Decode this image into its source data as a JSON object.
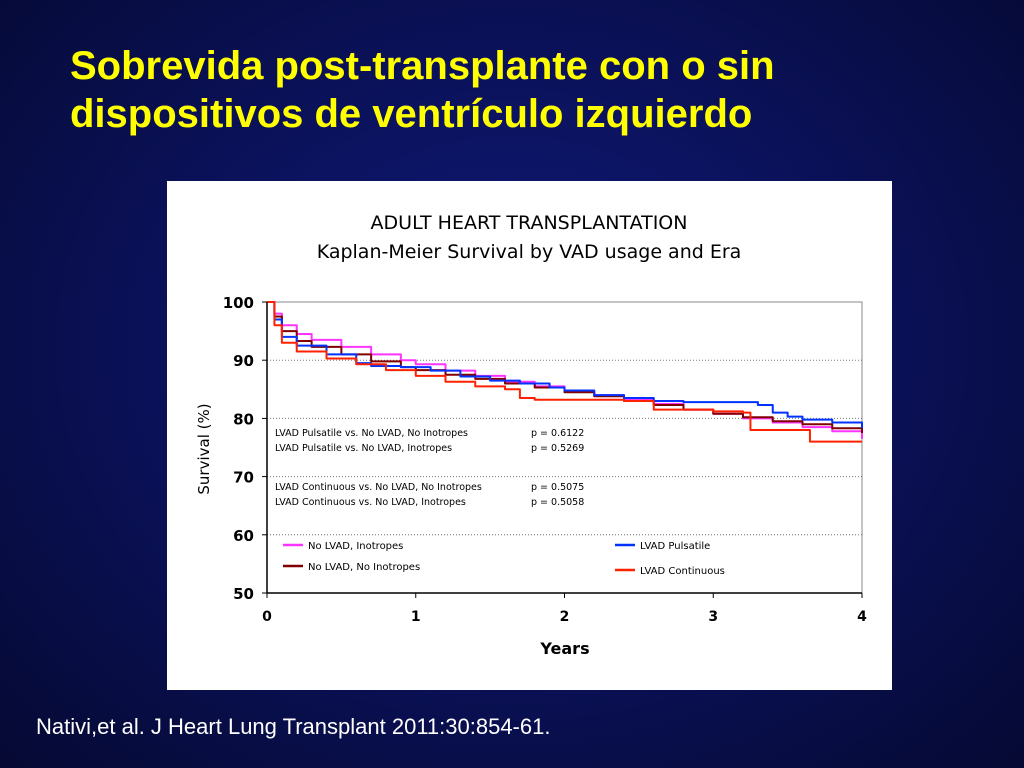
{
  "slide": {
    "title_line1": "Sobrevida post-transplante con o sin",
    "title_line2": "dispositivos de ventrículo izquierdo",
    "citation": "Nativi,et al. J Heart Lung Transplant 2011:30:854-61."
  },
  "chart_data": {
    "type": "line",
    "title": "ADULT HEART TRANSPLANTATION",
    "subtitle": "Kaplan-Meier Survival by VAD usage and Era",
    "xlabel": "Years",
    "ylabel": "Survival (%)",
    "xlim": [
      0,
      4
    ],
    "ylim": [
      50,
      100
    ],
    "x_ticks": [
      0,
      1,
      2,
      3,
      4
    ],
    "y_ticks": [
      50,
      60,
      70,
      80,
      90,
      100
    ],
    "grid": "horizontal dotted",
    "series": [
      {
        "name": "No LVAD, Inotropes",
        "color": "#ff33ff",
        "x": [
          0,
          0.05,
          0.1,
          0.2,
          0.3,
          0.5,
          0.7,
          0.9,
          1.0,
          1.2,
          1.4,
          1.6,
          1.8,
          2.0,
          2.2,
          2.4,
          2.6,
          2.8,
          3.0,
          3.2,
          3.4,
          3.6,
          3.8,
          4.0
        ],
        "y": [
          100,
          98,
          96,
          94.5,
          93.5,
          92.3,
          91,
          90,
          89.3,
          88.2,
          87.3,
          86.3,
          85.5,
          84.7,
          84,
          83.3,
          82.5,
          81.5,
          80.8,
          80,
          79.3,
          78.5,
          77.8,
          76.5
        ]
      },
      {
        "name": "No LVAD, No Inotropes",
        "color": "#800000",
        "x": [
          0,
          0.05,
          0.1,
          0.2,
          0.3,
          0.5,
          0.7,
          0.9,
          1.0,
          1.2,
          1.4,
          1.6,
          1.8,
          2.0,
          2.2,
          2.4,
          2.6,
          2.8,
          3.0,
          3.2,
          3.4,
          3.6,
          3.8,
          4.0
        ],
        "y": [
          100,
          97.5,
          95,
          93.3,
          92.3,
          91,
          89.8,
          88.8,
          88.3,
          87.5,
          86.8,
          86,
          85.3,
          84.5,
          83.8,
          83,
          82.3,
          81.5,
          80.8,
          80.2,
          79.5,
          79,
          78.3,
          77.5
        ]
      },
      {
        "name": "LVAD Pulsatile",
        "color": "#0033ff",
        "x": [
          0,
          0.05,
          0.1,
          0.2,
          0.4,
          0.6,
          0.7,
          0.9,
          1.1,
          1.3,
          1.5,
          1.7,
          1.9,
          2.0,
          2.2,
          2.4,
          2.6,
          2.8,
          3.0,
          3.2,
          3.3,
          3.4,
          3.5,
          3.6,
          3.8,
          4.0
        ],
        "y": [
          100,
          97,
          94,
          92.5,
          91,
          89.5,
          89,
          88.8,
          88.2,
          87.2,
          86.5,
          86,
          85.3,
          84.8,
          84,
          83.5,
          83,
          82.8,
          82.8,
          82.8,
          82.3,
          81,
          80.3,
          79.8,
          79.3,
          78.3
        ]
      },
      {
        "name": "LVAD Continuous",
        "color": "#ff2200",
        "x": [
          0,
          0.05,
          0.1,
          0.2,
          0.4,
          0.6,
          0.8,
          1.0,
          1.2,
          1.4,
          1.6,
          1.7,
          1.8,
          2.0,
          2.2,
          2.4,
          2.6,
          2.8,
          3.0,
          3.2,
          3.25,
          3.4,
          3.55,
          3.65,
          3.8,
          4.0
        ],
        "y": [
          100,
          96,
          93,
          91.5,
          90.3,
          89.3,
          88.3,
          87.3,
          86.3,
          85.5,
          85,
          83.5,
          83.2,
          83.2,
          83.2,
          83,
          81.5,
          81.5,
          81.2,
          81,
          78,
          78,
          78,
          76,
          76,
          76
        ]
      }
    ],
    "annotations": [
      {
        "comparison": "LVAD Pulsatile vs. No LVAD, No Inotropes",
        "p": "p = 0.6122"
      },
      {
        "comparison": "LVAD Pulsatile vs. No LVAD, Inotropes",
        "p": "p = 0.5269"
      },
      {
        "comparison": "LVAD Continuous vs. No LVAD, No Inotropes",
        "p": "p = 0.5075"
      },
      {
        "comparison": "LVAD Continuous vs. No LVAD, Inotropes",
        "p": "p = 0.5058"
      }
    ],
    "legend": [
      {
        "label": "No LVAD, Inotropes",
        "color": "#ff33ff",
        "placement": "bottom-left"
      },
      {
        "label": "No LVAD, No Inotropes",
        "color": "#800000",
        "placement": "bottom-left"
      },
      {
        "label": "LVAD Pulsatile",
        "color": "#0033ff",
        "placement": "bottom-right"
      },
      {
        "label": "LVAD Continuous",
        "color": "#ff2200",
        "placement": "bottom-right"
      }
    ]
  }
}
